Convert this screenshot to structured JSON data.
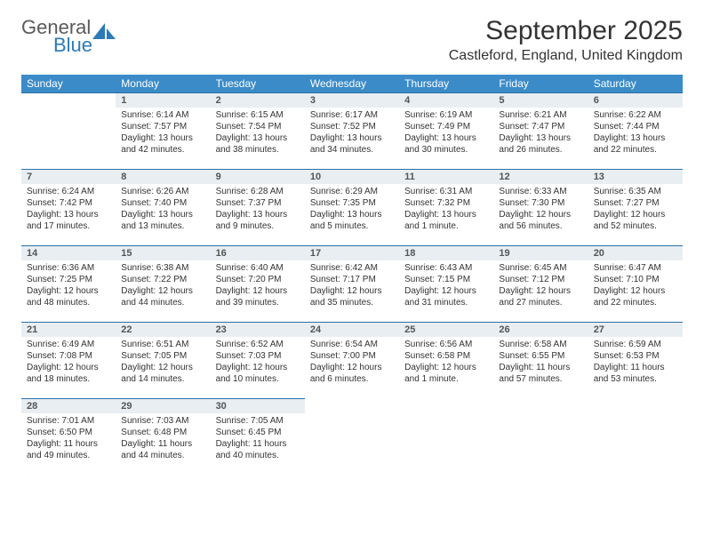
{
  "logo": {
    "general": "General",
    "blue": "Blue",
    "brand_color": "#2c7ab8",
    "gray_color": "#5a5a5a"
  },
  "title": "September 2025",
  "location": "Castleford, England, United Kingdom",
  "colors": {
    "header_bg": "#3b8bc8",
    "header_text": "#ffffff",
    "dayhead_bg": "#e8eef2",
    "dayhead_border": "#2a6fa5",
    "text": "#333333"
  },
  "weekdays": [
    "Sunday",
    "Monday",
    "Tuesday",
    "Wednesday",
    "Thursday",
    "Friday",
    "Saturday"
  ],
  "weeks": [
    [
      null,
      {
        "n": "1",
        "sr": "Sunrise: 6:14 AM",
        "ss": "Sunset: 7:57 PM",
        "d1": "Daylight: 13 hours",
        "d2": "and 42 minutes."
      },
      {
        "n": "2",
        "sr": "Sunrise: 6:15 AM",
        "ss": "Sunset: 7:54 PM",
        "d1": "Daylight: 13 hours",
        "d2": "and 38 minutes."
      },
      {
        "n": "3",
        "sr": "Sunrise: 6:17 AM",
        "ss": "Sunset: 7:52 PM",
        "d1": "Daylight: 13 hours",
        "d2": "and 34 minutes."
      },
      {
        "n": "4",
        "sr": "Sunrise: 6:19 AM",
        "ss": "Sunset: 7:49 PM",
        "d1": "Daylight: 13 hours",
        "d2": "and 30 minutes."
      },
      {
        "n": "5",
        "sr": "Sunrise: 6:21 AM",
        "ss": "Sunset: 7:47 PM",
        "d1": "Daylight: 13 hours",
        "d2": "and 26 minutes."
      },
      {
        "n": "6",
        "sr": "Sunrise: 6:22 AM",
        "ss": "Sunset: 7:44 PM",
        "d1": "Daylight: 13 hours",
        "d2": "and 22 minutes."
      }
    ],
    [
      {
        "n": "7",
        "sr": "Sunrise: 6:24 AM",
        "ss": "Sunset: 7:42 PM",
        "d1": "Daylight: 13 hours",
        "d2": "and 17 minutes."
      },
      {
        "n": "8",
        "sr": "Sunrise: 6:26 AM",
        "ss": "Sunset: 7:40 PM",
        "d1": "Daylight: 13 hours",
        "d2": "and 13 minutes."
      },
      {
        "n": "9",
        "sr": "Sunrise: 6:28 AM",
        "ss": "Sunset: 7:37 PM",
        "d1": "Daylight: 13 hours",
        "d2": "and 9 minutes."
      },
      {
        "n": "10",
        "sr": "Sunrise: 6:29 AM",
        "ss": "Sunset: 7:35 PM",
        "d1": "Daylight: 13 hours",
        "d2": "and 5 minutes."
      },
      {
        "n": "11",
        "sr": "Sunrise: 6:31 AM",
        "ss": "Sunset: 7:32 PM",
        "d1": "Daylight: 13 hours",
        "d2": "and 1 minute."
      },
      {
        "n": "12",
        "sr": "Sunrise: 6:33 AM",
        "ss": "Sunset: 7:30 PM",
        "d1": "Daylight: 12 hours",
        "d2": "and 56 minutes."
      },
      {
        "n": "13",
        "sr": "Sunrise: 6:35 AM",
        "ss": "Sunset: 7:27 PM",
        "d1": "Daylight: 12 hours",
        "d2": "and 52 minutes."
      }
    ],
    [
      {
        "n": "14",
        "sr": "Sunrise: 6:36 AM",
        "ss": "Sunset: 7:25 PM",
        "d1": "Daylight: 12 hours",
        "d2": "and 48 minutes."
      },
      {
        "n": "15",
        "sr": "Sunrise: 6:38 AM",
        "ss": "Sunset: 7:22 PM",
        "d1": "Daylight: 12 hours",
        "d2": "and 44 minutes."
      },
      {
        "n": "16",
        "sr": "Sunrise: 6:40 AM",
        "ss": "Sunset: 7:20 PM",
        "d1": "Daylight: 12 hours",
        "d2": "and 39 minutes."
      },
      {
        "n": "17",
        "sr": "Sunrise: 6:42 AM",
        "ss": "Sunset: 7:17 PM",
        "d1": "Daylight: 12 hours",
        "d2": "and 35 minutes."
      },
      {
        "n": "18",
        "sr": "Sunrise: 6:43 AM",
        "ss": "Sunset: 7:15 PM",
        "d1": "Daylight: 12 hours",
        "d2": "and 31 minutes."
      },
      {
        "n": "19",
        "sr": "Sunrise: 6:45 AM",
        "ss": "Sunset: 7:12 PM",
        "d1": "Daylight: 12 hours",
        "d2": "and 27 minutes."
      },
      {
        "n": "20",
        "sr": "Sunrise: 6:47 AM",
        "ss": "Sunset: 7:10 PM",
        "d1": "Daylight: 12 hours",
        "d2": "and 22 minutes."
      }
    ],
    [
      {
        "n": "21",
        "sr": "Sunrise: 6:49 AM",
        "ss": "Sunset: 7:08 PM",
        "d1": "Daylight: 12 hours",
        "d2": "and 18 minutes."
      },
      {
        "n": "22",
        "sr": "Sunrise: 6:51 AM",
        "ss": "Sunset: 7:05 PM",
        "d1": "Daylight: 12 hours",
        "d2": "and 14 minutes."
      },
      {
        "n": "23",
        "sr": "Sunrise: 6:52 AM",
        "ss": "Sunset: 7:03 PM",
        "d1": "Daylight: 12 hours",
        "d2": "and 10 minutes."
      },
      {
        "n": "24",
        "sr": "Sunrise: 6:54 AM",
        "ss": "Sunset: 7:00 PM",
        "d1": "Daylight: 12 hours",
        "d2": "and 6 minutes."
      },
      {
        "n": "25",
        "sr": "Sunrise: 6:56 AM",
        "ss": "Sunset: 6:58 PM",
        "d1": "Daylight: 12 hours",
        "d2": "and 1 minute."
      },
      {
        "n": "26",
        "sr": "Sunrise: 6:58 AM",
        "ss": "Sunset: 6:55 PM",
        "d1": "Daylight: 11 hours",
        "d2": "and 57 minutes."
      },
      {
        "n": "27",
        "sr": "Sunrise: 6:59 AM",
        "ss": "Sunset: 6:53 PM",
        "d1": "Daylight: 11 hours",
        "d2": "and 53 minutes."
      }
    ],
    [
      {
        "n": "28",
        "sr": "Sunrise: 7:01 AM",
        "ss": "Sunset: 6:50 PM",
        "d1": "Daylight: 11 hours",
        "d2": "and 49 minutes."
      },
      {
        "n": "29",
        "sr": "Sunrise: 7:03 AM",
        "ss": "Sunset: 6:48 PM",
        "d1": "Daylight: 11 hours",
        "d2": "and 44 minutes."
      },
      {
        "n": "30",
        "sr": "Sunrise: 7:05 AM",
        "ss": "Sunset: 6:45 PM",
        "d1": "Daylight: 11 hours",
        "d2": "and 40 minutes."
      },
      null,
      null,
      null,
      null
    ]
  ]
}
